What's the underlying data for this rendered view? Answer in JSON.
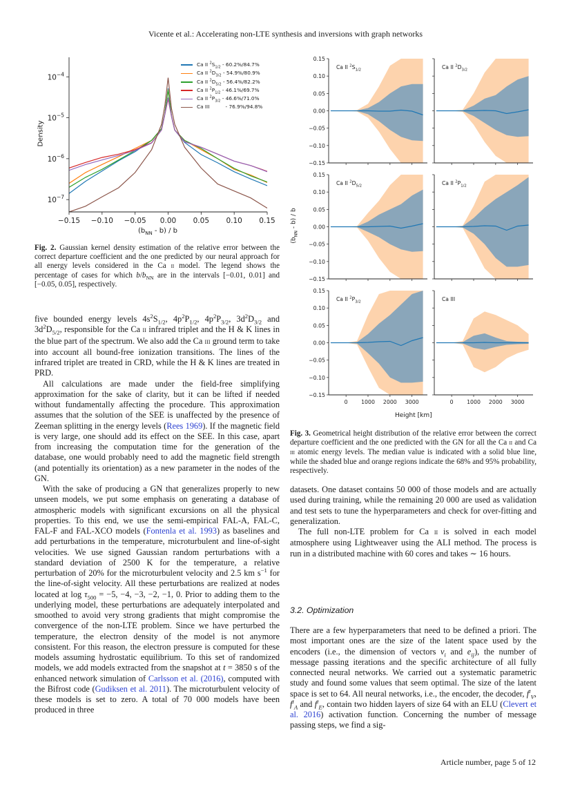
{
  "header": {
    "running_title": "Vicente et al.: Accelerating non-LTE synthesis and inversions with graph networks"
  },
  "footer": {
    "page_label": "Article number, page 5 of 12"
  },
  "colors": {
    "series": [
      "#1f77b4",
      "#ff7f0e",
      "#2ca02c",
      "#d62728",
      "#9467bd",
      "#8c564b"
    ],
    "band95": "#fdd3ad",
    "band68": "#8aa6ba",
    "median": "#1f77b4",
    "link": "#2a3fd0"
  },
  "chart_data": [
    {
      "type": "line",
      "xlabel": "(b<sub>NN</sub> - b) / b",
      "ylabel": "Density",
      "yscale": "log",
      "xlim": [
        -0.15,
        0.15
      ],
      "ylim": [
        5e-08,
        0.0003
      ],
      "xticks": [
        -0.15,
        -0.1,
        -0.05,
        0.0,
        0.05,
        0.1,
        0.15
      ],
      "xtick_labels": [
        "−0.15",
        "−0.10",
        "−0.05",
        "0.00",
        "0.05",
        "0.10",
        "0.15"
      ],
      "yticks": [
        0.0001,
        1e-05,
        1e-06,
        1e-07
      ],
      "ytick_labels": [
        {
          "base": "10",
          "exp": "−4"
        },
        {
          "base": "10",
          "exp": "−5"
        },
        {
          "base": "10",
          "exp": "−6"
        },
        {
          "base": "10",
          "exp": "−7"
        }
      ],
      "legend_position": "top-right",
      "grid": false,
      "x": [
        -0.15,
        -0.125,
        -0.1,
        -0.075,
        -0.05,
        -0.025,
        -0.01,
        -0.005,
        0,
        0.005,
        0.01,
        0.025,
        0.05,
        0.075,
        0.1,
        0.125,
        0.15
      ],
      "series": [
        {
          "name": "Ca II <sup>2</sup>S<sub>1/2</sub> - 60.2%/84.7%",
          "values": [
            1.41e-07,
            2.8e-07,
            5e-07,
            8.9e-07,
            1.48e-06,
            2.8e-06,
            5.4e-06,
            1.26e-05,
            5.2e-05,
            1.12e-05,
            5e-06,
            2.5e-06,
            1.26e-06,
            7.9e-07,
            4.8e-07,
            3.2e-07,
            2.2e-07
          ]
        },
        {
          "name": "Ca II <sup>2</sup>D<sub>3/2</sub> - 54.9%/80.9%",
          "values": [
            2.5e-07,
            4.6e-07,
            7.2e-07,
            1.12e-06,
            1.78e-06,
            2.8e-06,
            5.4e-06,
            1.26e-05,
            4.9e-05,
            1.12e-05,
            5e-06,
            2.8e-06,
            1.66e-06,
            1e-06,
            5.5e-07,
            4e-07,
            2.6e-07
          ]
        },
        {
          "name": "Ca II <sup>2</sup>D<sub>5/2</sub> - 56.4%/82.2%",
          "values": [
            2e-07,
            3.5e-07,
            5.5e-07,
            9.3e-07,
            1.58e-06,
            2.8e-06,
            5.4e-06,
            1.26e-05,
            4.8e-05,
            1.12e-05,
            5e-06,
            2.8e-06,
            1.78e-06,
            1e-06,
            5.8e-07,
            3.8e-07,
            2.7e-07
          ]
        },
        {
          "name": "Ca II <sup>2</sup>P<sub>1/2</sub> - 46.1%/69.7%",
          "values": [
            5.9e-07,
            8.1e-07,
            1.07e-06,
            1.29e-06,
            1.66e-06,
            2.45e-06,
            5e-06,
            1.2e-05,
            2.9e-05,
            1.1e-05,
            5e-06,
            2.6e-06,
            1.9e-06,
            1.29e-06,
            8.7e-07,
            6.8e-07,
            4.9e-07
          ]
        },
        {
          "name": "Ca II <sup>2</sup>P<sub>3/2</sub> - 46.6%/71.0%",
          "values": [
            5.2e-07,
            7.2e-07,
            9.3e-07,
            1.2e-06,
            1.58e-06,
            2.4e-06,
            5e-06,
            1.2e-05,
            3.1e-05,
            1.1e-05,
            5e-06,
            2.6e-06,
            1.9e-06,
            1.29e-06,
            8.7e-07,
            6.8e-07,
            4.8e-07
          ]
        },
        {
          "name": "Ca III &nbsp;&nbsp;&nbsp;&nbsp;&nbsp;&nbsp;&nbsp;&nbsp; - 76.9%/94.8%",
          "values": [
            5e-08,
            6.9e-08,
            1.17e-07,
            1.95e-07,
            4.6e-07,
            1.66e-06,
            6.9e-06,
            1.95e-05,
            9.5e-05,
            1.7e-05,
            6.9e-06,
            1.9e-06,
            5.9e-07,
            2.4e-07,
            1.62e-07,
            1.1e-07,
            6.2e-08
          ]
        }
      ]
    },
    {
      "type": "area",
      "xlabel": "Height [km]",
      "ylabel": "(b<sub>NN</sub> - b) / b",
      "xlim": [
        -790,
        3700
      ],
      "ylim": [
        -0.15,
        0.15
      ],
      "xticks": [
        0,
        1000,
        2000,
        3000
      ],
      "xtick_labels": [
        "0",
        "1000",
        "2000",
        "3000"
      ],
      "yticks": [
        0.15,
        0.1,
        0.05,
        0.0,
        -0.05,
        -0.1,
        -0.15
      ],
      "ytick_labels": [
        "0.15",
        "0.10",
        "0.05",
        "0.00",
        "−0.05",
        "−0.10",
        "−0.15"
      ],
      "grid": false,
      "x": [
        -700,
        0,
        500,
        1000,
        1500,
        2000,
        2500,
        3000,
        3500
      ],
      "panels": [
        {
          "title": "Ca II <sup>2</sup>S<sub>1/2</sub>",
          "median": [
            0,
            0,
            0,
            0,
            -0.001,
            -0.001,
            0.002,
            -0.001,
            -0.012
          ],
          "lo68": [
            0,
            0,
            -0.001,
            -0.01,
            -0.03,
            -0.055,
            -0.075,
            -0.085,
            -0.087
          ],
          "hi68": [
            0,
            0,
            0.001,
            0.008,
            0.025,
            0.05,
            0.07,
            0.077,
            0.077
          ],
          "lo95": [
            0,
            0,
            -0.002,
            -0.02,
            -0.06,
            -0.11,
            -0.15,
            -0.15,
            -0.15
          ],
          "hi95": [
            0,
            0,
            0.002,
            0.02,
            0.07,
            0.13,
            0.15,
            0.15,
            0.15
          ]
        },
        {
          "title": "Ca II <sup>2</sup>D<sub>3/2</sub>",
          "median": [
            0,
            0,
            0,
            0,
            0.001,
            0,
            -0.008,
            -0.003,
            0.003
          ],
          "lo68": [
            0,
            0,
            -0.001,
            -0.015,
            -0.035,
            -0.055,
            -0.07,
            -0.075,
            -0.073
          ],
          "hi68": [
            0,
            0,
            0.001,
            0.015,
            0.035,
            0.045,
            0.07,
            0.09,
            0.1
          ],
          "lo95": [
            0,
            0,
            -0.003,
            -0.04,
            -0.09,
            -0.13,
            -0.15,
            -0.15,
            -0.15
          ],
          "hi95": [
            0,
            0,
            0.003,
            0.05,
            0.11,
            0.15,
            0.15,
            0.15,
            0.15
          ]
        },
        {
          "title": "Ca II <sup>2</sup>D<sub>5/2</sub>",
          "median": [
            0,
            0,
            0,
            0,
            0.001,
            0.002,
            -0.004,
            0.002,
            0.009
          ],
          "lo68": [
            0,
            0,
            -0.001,
            -0.015,
            -0.03,
            -0.05,
            -0.065,
            -0.072,
            -0.07
          ],
          "hi68": [
            0,
            0,
            0.001,
            0.015,
            0.035,
            0.05,
            0.065,
            0.09,
            0.107
          ],
          "lo95": [
            0,
            0,
            -0.002,
            -0.04,
            -0.09,
            -0.13,
            -0.15,
            -0.15,
            -0.15
          ],
          "hi95": [
            0,
            0,
            0.002,
            0.04,
            0.075,
            0.12,
            0.15,
            0.15,
            0.15
          ]
        },
        {
          "title": "Ca II <sup>2</sup>P<sub>1/2</sub>",
          "median": [
            0,
            0,
            0,
            0.001,
            0.003,
            0.002,
            -0.01,
            0.002,
            0.005
          ],
          "lo68": [
            0,
            0,
            -0.002,
            -0.02,
            -0.05,
            -0.09,
            -0.115,
            -0.115,
            -0.11
          ],
          "hi68": [
            0,
            0,
            0.002,
            0.025,
            0.055,
            0.08,
            0.1,
            0.12,
            0.143
          ],
          "lo95": [
            0,
            0,
            -0.003,
            -0.06,
            -0.12,
            -0.15,
            -0.15,
            -0.15,
            -0.15
          ],
          "hi95": [
            0,
            0,
            0.003,
            0.06,
            0.13,
            0.15,
            0.15,
            0.15,
            0.15
          ]
        },
        {
          "title": "Ca II <sup>2</sup>P<sub>3/2</sub>",
          "median": [
            0,
            0,
            0,
            0.001,
            0.003,
            0.004,
            -0.008,
            0.006,
            0.015
          ],
          "lo68": [
            0,
            0,
            -0.002,
            -0.03,
            -0.06,
            -0.1,
            -0.115,
            -0.115,
            -0.112
          ],
          "hi68": [
            0,
            0,
            0.002,
            0.025,
            0.055,
            0.08,
            0.11,
            0.14,
            0.15
          ],
          "lo95": [
            0,
            0,
            -0.005,
            -0.07,
            -0.13,
            -0.15,
            -0.15,
            -0.15,
            -0.15
          ],
          "hi95": [
            0,
            0,
            0.005,
            0.08,
            0.14,
            0.15,
            0.15,
            0.15,
            0.15
          ]
        },
        {
          "title": "Ca III",
          "median": [
            0,
            0,
            0,
            0,
            0.001,
            0,
            0,
            0,
            0
          ],
          "lo68": [
            0,
            0,
            -0.002,
            -0.015,
            -0.02,
            -0.012,
            -0.006,
            -0.004,
            -0.003
          ],
          "hi68": [
            0,
            0,
            0.002,
            0.02,
            0.027,
            0.015,
            0.005,
            0.003,
            0.002
          ],
          "lo95": [
            0,
            0,
            -0.005,
            -0.07,
            -0.085,
            -0.07,
            -0.045,
            -0.03,
            -0.02
          ],
          "hi95": [
            0,
            0,
            0.005,
            0.07,
            0.09,
            0.08,
            0.065,
            0.05,
            0.025
          ]
        }
      ]
    }
  ],
  "fig2": {
    "caption": "<b>Fig. 2.</b> Gaussian kernel density estimation of the relative error between the correct departure coefficient and the one predicted by our neural approach for all energy levels considered in the Ca <span class=\"sc\">II</span> model. The legend shows the percentage of cases for which <i>b</i>/<i>b</i><sub>NN</sub> are in the intervals [−0.01, 0.01] and [−0.05, 0.05], respectively."
  },
  "fig3": {
    "caption": "<b>Fig. 3.</b> Geometrical height distribution of the relative error between the correct departure coefficient and the one predicted with the GN for all the Ca <span class=\"sc\">II</span> and Ca <span class=\"sc\">III</span> atomic energy levels. The median value is indicated with a solid blue line, while the shaded blue and orange regions indicate the 68% and 95% probability, respectively."
  },
  "left_column": {
    "paragraphs": [
      "five bounded energy levels 4s<sup>2</sup>S<sub>1/2</sub>, 4p<sup>2</sup>P<sub>1/2</sub>, 4p<sup>2</sup>P<sub>3/2</sub>, 3d<sup>2</sup>D<sub>3/2</sub> and 3d<sup>2</sup>D<sub>5/2</sub>, responsible for the Ca <span class=\"sc\">II</span> infrared triplet and the H &amp; K lines in the blue part of the spectrum. We also add the Ca <span class=\"sc\">III</span> ground term to take into account all bound-free ionization transitions. The lines of the infrared triplet are treated in CRD, while the H &amp; K lines are treated in PRD.",
      "All calculations are made under the field-free simplifying approximation for the sake of clarity, but it can be lifted if needed without fundamentally affecting the procedure. This approximation assumes that the solution of the SEE is unaffected by the presence of Zeeman splitting in the energy levels (<span class=\"ref\">Rees 1969</span>). If the magnetic field is very large, one should add its effect on the SEE. In this case, apart from increasing the computation time for the generation of the database, one would probably need to add the magnetic field strength (and potentially its orientation) as a new parameter in the nodes of the GN.",
      "With the sake of producing a GN that generalizes properly to new unseen models, we put some emphasis on generating a database of atmospheric models with significant excursions on all the physical properties. To this end, we use the semi-empirical FAL-A, FAL-C, FAL-F and FAL-XCO models (<span class=\"ref\">Fontenla et al. 1993</span>) as baselines and add perturbations in the temperature, microturbulent and line-of-sight velocities. We use signed Gaussian random perturbations with a standard deviation of 2500 K for the temperature, a relative perturbation of 20% for the microturbulent velocity and 2.5 km s<sup>−1</sup> for the line-of-sight velocity. All these perturbations are realized at nodes located at log <i>τ</i><sub>500</sub> = −5, −4, −3, −2, −1, 0. Prior to adding them to the underlying model, these perturbations are adequately interpolated and smoothed to avoid very strong gradients that might compromise the convergence of the non-LTE problem. Since we have perturbed the temperature, the electron density of the model is not anymore consistent. For this reason, the electron pressure is computed for these models assuming hydrostatic equilibrium. To this set of randomized models, we add models extracted from the snapshot at <i>t</i> = 3850 s of the enhanced network simulation of <span class=\"ref\">Carlsson et al. (2016)</span>, computed with the Bifrost code (<span class=\"ref\">Gudiksen et al. 2011</span>). The microturbulent velocity of these models is set to zero. A total of 70 000 models have been produced in three"
    ]
  },
  "right_column": {
    "paragraphs": [
      "datasets. One dataset contains 50 000 of those models and are actually used during training, while the remaining 20 000 are used as validation and test sets to tune the hyperparameters and check for over-fitting and generalization.",
      "The full non-LTE problem for Ca <span class=\"sc\">II</span> is solved in each model atmosphere using Lightweaver using the ALI method. The process is run in a distributed machine with 60 cores and takes ∼ 16 hours."
    ],
    "section_heading": "3.2. Optimization",
    "section_paragraph": "There are a few hyperparameters that need to be defined a priori. The most important ones are the size of the latent space used by the encoders (i.e., the dimension of vectors <i>v<sub>i</sub></i> and <i>e<sub>ij</sub></i>), the number of message passing iterations and the specific architecture of all fully connected neural networks. We carried out a systematic parametric study and found some values that seem optimal. The size of the latent space is set to 64. All neural networks, i.e., the encoder, the decoder, <i>f</i><sup><i>t</i></sup><sub><i>V</i></sub>, <i>f</i><sup><i>t</i></sup><sub><i>A</i></sub> and <i>f</i><sup><i>t</i></sup><sub><i>E</i></sub>, contain two hidden layers of size 64 with an ELU (<span class=\"ref\">Clevert et al. 2016</span>) activation function. Concerning the number of message passing steps, we find a sig-"
  }
}
